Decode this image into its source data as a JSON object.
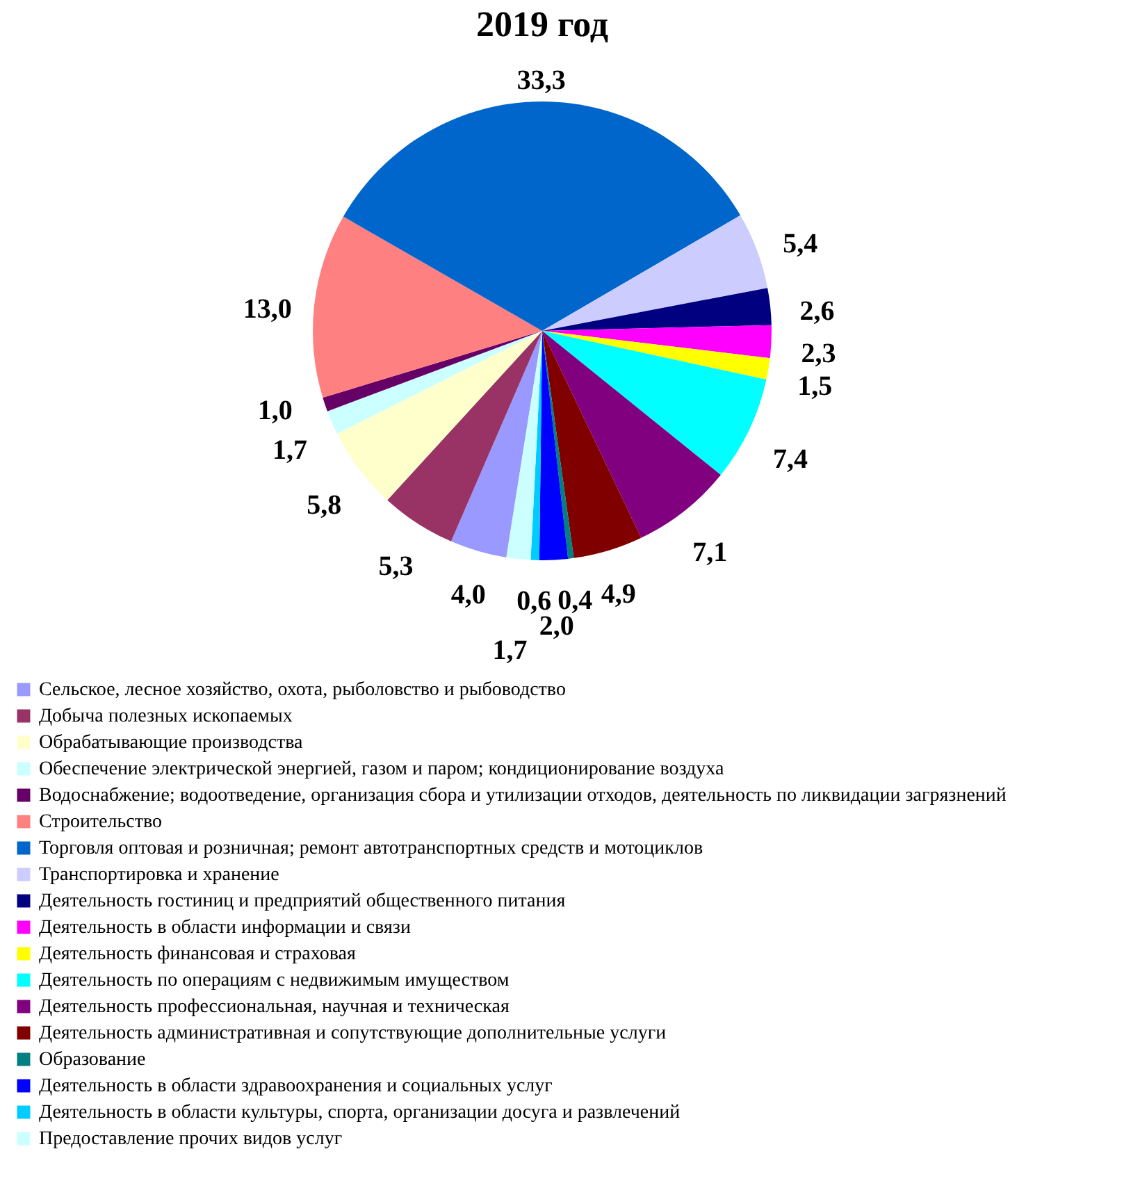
{
  "chart_data": {
    "type": "pie",
    "title": "2019 год",
    "categories": [
      "Сельское, лесное хозяйство, охота, рыболовство и рыбоводство",
      "Добыча полезных ископаемых",
      "Обрабатывающие производства",
      "Обеспечение электрической энергией, газом и паром; кондиционирование воздуха",
      "Водоснабжение; водоотведение, организация сбора и утилизации отходов, деятельность по ликвидации загрязнений",
      "Строительство",
      "Торговля оптовая и розничная; ремонт автотранспортных средств и мотоциклов",
      "Транспортировка и хранение",
      "Деятельность гостиниц и предприятий общественного питания",
      "Деятельность в области информации и связи",
      "Деятельность финансовая и страховая",
      "Деятельность по операциям с недвижимым имуществом",
      "Деятельность профессиональная, научная и техническая",
      "Деятельность административная и сопутствующие дополнительные услуги",
      "Образование",
      "Деятельность в области здравоохранения и социальных услуг",
      "Деятельность в области культуры, спорта, организации досуга и развлечений",
      "Предоставление прочих видов услуг"
    ],
    "values": [
      4.0,
      5.3,
      5.8,
      1.7,
      1.0,
      13.0,
      33.3,
      5.4,
      2.6,
      2.3,
      1.5,
      7.4,
      7.1,
      4.9,
      0.4,
      2.0,
      0.6,
      1.7
    ],
    "colors": [
      "#9999ff",
      "#993366",
      "#ffffcc",
      "#ccffff",
      "#660066",
      "#ff8080",
      "#0066cc",
      "#ccccff",
      "#000080",
      "#ff00ff",
      "#ffff00",
      "#00ffff",
      "#800080",
      "#800000",
      "#008080",
      "#0000ff",
      "#00ccff",
      "#ccffff"
    ],
    "value_labels": [
      "4,0",
      "5,3",
      "5,8",
      "1,7",
      "1,0",
      "13,0",
      "33,3",
      "5,4",
      "2,6",
      "2,3",
      "1,5",
      "7,4",
      "7,1",
      "4,9",
      "0,4",
      "2,0",
      "0,6",
      "1,7"
    ],
    "legend": "bottom"
  }
}
